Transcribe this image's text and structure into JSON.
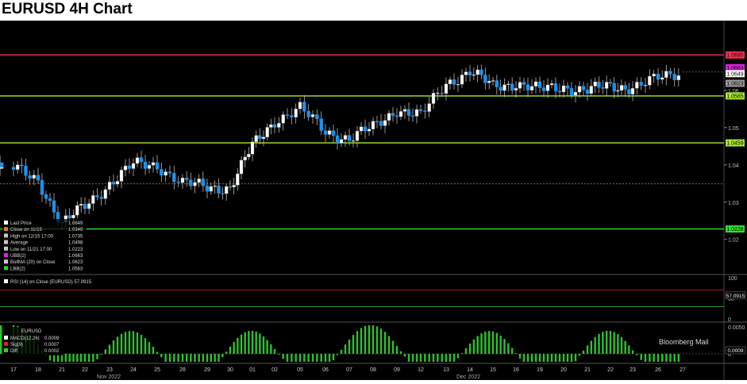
{
  "title": "EURUSD 4H Chart",
  "watermark": "Bloomberg Mail",
  "colors": {
    "background": "#000000",
    "upper_band": "#e020e0",
    "lower_band": "#30d030",
    "moving_average": "#c8c8c8",
    "candle_up": "#ffffff",
    "candle_down": "#2090e8",
    "resistance_line": "#ff3050",
    "support_line": "#a8e830",
    "low_line": "#30e030",
    "close_line": "#e08020"
  },
  "legend": [
    {
      "label": "Last Price",
      "value": "1.0649",
      "color": "#ffffff"
    },
    {
      "label": "Close on 11/15",
      "value": "1.0349",
      "color": "#e08020"
    },
    {
      "label": "High on 12/15 17:00",
      "value": "1.0735",
      "color": "#c8c8c8"
    },
    {
      "label": "Average",
      "value": "1.0498",
      "color": "#c8c8c8"
    },
    {
      "label": "Low on 11/21 17:00",
      "value": "1.0223",
      "color": "#c8c8c8"
    },
    {
      "label": "UBB(2)",
      "value": "1.0663",
      "color": "#e020e0"
    },
    {
      "label": "BollMA (20)  on Close",
      "value": "1.0623",
      "color": "#c8c8c8"
    },
    {
      "label": "LBB(2)",
      "value": "1.0583",
      "color": "#30d030"
    }
  ],
  "rsi": {
    "label": "RSI (14)  on Close (EURUSD) 57.0915",
    "value_tag": "57.0915",
    "ticks": [
      "100",
      "50",
      "0"
    ]
  },
  "macd": {
    "title": "EURUSD",
    "legend": [
      {
        "label": "MACD(12,26)",
        "value": "0.0009",
        "color": "#ffffff"
      },
      {
        "label": "Sig(9)",
        "value": "0.0007",
        "color": "#e02020"
      },
      {
        "label": "Diff",
        "value": "0.0002",
        "color": "#30d030"
      }
    ],
    "value_tag": "0.0009",
    "ticks": [
      "0.0050",
      "0"
    ]
  },
  "price_tags": [
    "1.0695",
    "1.0663",
    "1.0649",
    "1.0623",
    "1.0585",
    "1.0459",
    "1.0228"
  ],
  "month_labels": [
    "Nov 2022",
    "Dec 2022"
  ],
  "chart_data": {
    "type": "candlestick",
    "title": "EURUSD 4H Chart",
    "ylim": [
      1.011,
      1.077
    ],
    "y_ticks": [
      "1.06",
      "1.05",
      "1.04",
      "1.03",
      "1.02"
    ],
    "x_ticks": [
      "17",
      "18",
      "21",
      "22",
      "23",
      "24",
      "25",
      "28",
      "29",
      "30",
      "01",
      "02",
      "05",
      "06",
      "07",
      "08",
      "09",
      "12",
      "13",
      "14",
      "15",
      "16",
      "19",
      "20",
      "21",
      "22",
      "23",
      "26",
      "27"
    ],
    "horizontal_levels": {
      "resistance": 1.0695,
      "support_1": 1.0585,
      "support_2": 1.0459,
      "low": 1.0228,
      "close_11_15": 1.0349
    },
    "price_path": [
      [
        "17",
        1.039
      ],
      [
        "18",
        1.036
      ],
      [
        "21",
        1.024
      ],
      [
        "22",
        1.029
      ],
      [
        "23",
        1.035
      ],
      [
        "24",
        1.04
      ],
      [
        "25",
        1.04
      ],
      [
        "28",
        1.035
      ],
      [
        "29",
        1.034
      ],
      [
        "30",
        1.034
      ],
      [
        "01",
        1.045
      ],
      [
        "02",
        1.052
      ],
      [
        "05",
        1.055
      ],
      [
        "06",
        1.049
      ],
      [
        "07",
        1.047
      ],
      [
        "08",
        1.05
      ],
      [
        "09",
        1.055
      ],
      [
        "12",
        1.053
      ],
      [
        "13",
        1.062
      ],
      [
        "14",
        1.065
      ],
      [
        "15",
        1.061
      ],
      [
        "16",
        1.062
      ],
      [
        "19",
        1.06
      ],
      [
        "20",
        1.061
      ],
      [
        "21",
        1.06
      ],
      [
        "22",
        1.061
      ],
      [
        "23",
        1.061
      ],
      [
        "26",
        1.063
      ],
      [
        "27",
        1.065
      ]
    ]
  }
}
